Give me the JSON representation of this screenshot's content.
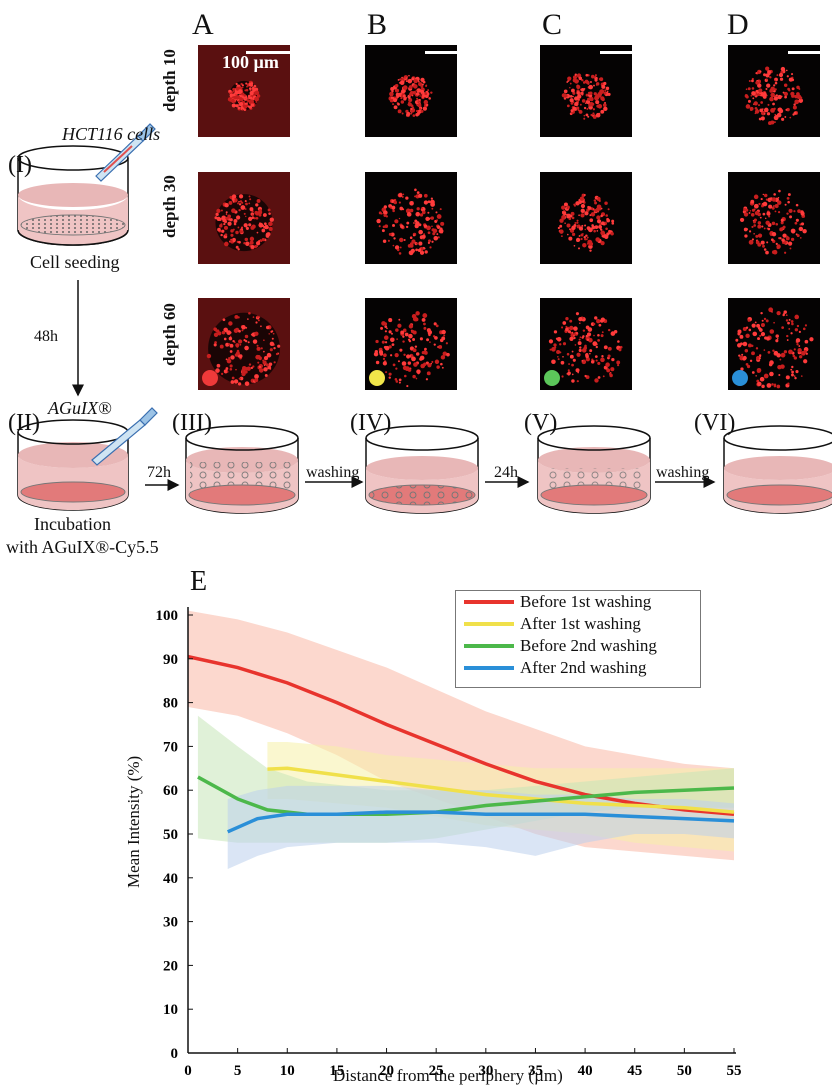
{
  "panels": {
    "columns": [
      "A",
      "B",
      "C",
      "D"
    ],
    "rows": [
      "depth 10",
      "depth 30",
      "depth 60"
    ],
    "scalebar_label": "100 µm",
    "condition_colors": [
      "#f03a3a",
      "#f1e64a",
      "#5cc65a",
      "#2a8fd8"
    ]
  },
  "workflow": {
    "step_I": "(I)",
    "cells_label": "HCT116 cells",
    "seeding_label": "Cell seeding",
    "time_48h": "48h",
    "step_II": "(II)",
    "agent_label": "AGuIX®",
    "incubation_line1": "Incubation",
    "incubation_line2": "with AGuIX®-Cy5.5",
    "time_72h": "72h",
    "step_III": "(III)",
    "washing_1": "washing",
    "step_IV": "(IV)",
    "time_24h": "24h",
    "step_V": "(V)",
    "washing_2": "washing",
    "step_VI": "(VI)"
  },
  "chart_panel_letter": "E",
  "chart_data": {
    "type": "line",
    "xlabel": "Distance from the periphery (µm)",
    "ylabel": "Mean Intensity (%)",
    "xlim": [
      0,
      55
    ],
    "ylim": [
      0,
      100
    ],
    "x_ticks": [
      0,
      5,
      10,
      15,
      20,
      25,
      30,
      35,
      40,
      45,
      50,
      55
    ],
    "y_ticks": [
      0,
      10,
      20,
      30,
      40,
      50,
      60,
      70,
      80,
      90,
      100
    ],
    "legend_position": "top-right",
    "series": [
      {
        "name": "Before 1st washing",
        "color": "#e8342d",
        "band_color": "#f9b8a6",
        "x": [
          0,
          5,
          10,
          15,
          20,
          25,
          30,
          35,
          40,
          45,
          50,
          55
        ],
        "y": [
          90.5,
          88,
          84.5,
          80,
          75,
          70.5,
          66,
          62,
          59,
          57,
          55.5,
          54.5
        ],
        "upper": [
          101,
          99,
          96,
          92,
          88,
          83,
          78,
          74,
          70,
          68,
          66,
          65
        ],
        "lower": [
          79,
          77,
          73,
          68,
          62,
          58,
          54,
          50,
          47,
          46,
          45,
          44
        ]
      },
      {
        "name": "After 1st washing",
        "color": "#f0e04a",
        "band_color": "#f5f0a8",
        "x": [
          8,
          10,
          15,
          20,
          25,
          30,
          35,
          40,
          45,
          50,
          55
        ],
        "y": [
          64.8,
          65,
          63.5,
          62,
          60.5,
          59,
          58,
          57,
          56.5,
          56,
          55
        ],
        "upper": [
          71,
          71,
          70,
          68,
          67,
          66,
          65,
          65,
          65,
          65,
          65
        ],
        "lower": [
          58,
          58,
          57,
          56,
          54,
          52,
          51,
          50,
          48,
          47,
          46
        ]
      },
      {
        "name": "Before 2nd washing",
        "color": "#4cb84a",
        "band_color": "#c7e6b8",
        "x": [
          1,
          5,
          8,
          12,
          16,
          20,
          25,
          30,
          35,
          40,
          45,
          50,
          55
        ],
        "y": [
          63,
          58,
          55.5,
          54.5,
          54.5,
          54.5,
          55,
          56.5,
          57.5,
          58.5,
          59.5,
          60,
          60.5
        ],
        "upper": [
          77,
          70,
          65,
          62,
          61,
          60,
          60,
          60,
          61,
          62,
          63,
          64,
          65
        ],
        "lower": [
          49,
          48,
          48,
          48,
          48,
          48,
          49,
          51,
          53,
          55,
          56,
          56,
          56
        ]
      },
      {
        "name": "After 2nd washing",
        "color": "#2a8fd8",
        "band_color": "#bccfec",
        "x": [
          4,
          7,
          10,
          15,
          20,
          25,
          30,
          35,
          40,
          45,
          50,
          55
        ],
        "y": [
          50.5,
          53.5,
          54.5,
          54.5,
          55,
          55,
          54.5,
          54.5,
          54.5,
          54,
          53.5,
          53
        ],
        "upper": [
          58,
          60,
          61,
          61,
          61,
          60,
          60,
          59,
          59,
          58,
          58,
          57
        ],
        "lower": [
          42,
          45,
          47,
          48,
          48,
          48,
          47,
          45,
          48,
          50,
          50,
          49
        ]
      }
    ]
  }
}
